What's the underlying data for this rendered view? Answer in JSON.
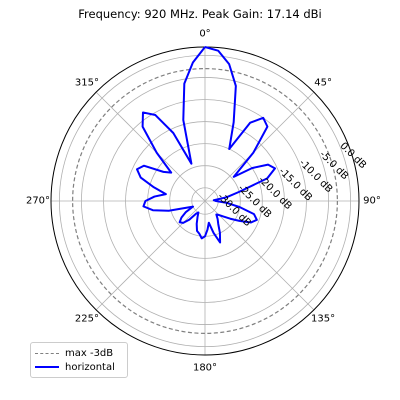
{
  "chart_data": {
    "type": "polar-line",
    "title": "Frequency: 920 MHz. Peak Gain: 17.14 dBi",
    "angle_tick_labels": [
      "0°",
      "45°",
      "90°",
      "135°",
      "180°",
      "225°",
      "270°",
      "315°"
    ],
    "angle_ticks_deg": [
      0,
      45,
      90,
      135,
      180,
      225,
      270,
      315
    ],
    "radial_tick_labels": [
      "-30.0 dB",
      "-25.0 dB",
      "-20.0 dB",
      "-15.0 dB",
      "-10.0 dB",
      "-5.0 dB",
      "0.0 dB"
    ],
    "radial_ticks_db": [
      -30,
      -25,
      -20,
      -15,
      -10,
      -5,
      0
    ],
    "rlim_db": [
      -33,
      1.9
    ],
    "theta_zero": "top",
    "theta_direction": "clockwise",
    "grid": true,
    "legend_placement": "lower-left",
    "reference_line": {
      "name": "max -3dB",
      "value_db": -3,
      "color": "#808080",
      "style": "dashed"
    },
    "series": [
      {
        "name": "horizontal",
        "color": "#0000ff",
        "angles_deg": [
          0,
          5,
          10,
          15,
          20,
          25,
          30,
          35,
          40,
          45,
          50,
          55,
          60,
          65,
          70,
          75,
          80,
          85,
          90,
          95,
          100,
          105,
          110,
          115,
          120,
          125,
          130,
          135,
          140,
          145,
          150,
          155,
          160,
          165,
          170,
          175,
          180,
          185,
          190,
          195,
          200,
          205,
          210,
          215,
          220,
          225,
          230,
          235,
          240,
          245,
          250,
          255,
          260,
          265,
          270,
          275,
          280,
          285,
          290,
          295,
          300,
          305,
          310,
          315,
          320,
          325,
          330,
          335,
          340,
          345,
          350,
          355
        ],
        "values_db": [
          1.9,
          1.2,
          -1.5,
          -6.0,
          -14.0,
          -20.0,
          -12.5,
          -10.0,
          -11.0,
          -17.5,
          -24.5,
          -20.0,
          -16.5,
          -15.5,
          -18.0,
          -25.0,
          -28.0,
          -31.0,
          -30.5,
          -28.0,
          -25.0,
          -21.5,
          -20.5,
          -21.5,
          -24.0,
          -26.0,
          -27.5,
          -28.5,
          -29.0,
          -28.0,
          -27.0,
          -25.0,
          -23.0,
          -25.5,
          -28.0,
          -26.5,
          -25.0,
          -24.5,
          -25.5,
          -26.0,
          -27.5,
          -29.0,
          -30.0,
          -29.5,
          -27.5,
          -26.0,
          -25.5,
          -26.5,
          -28.0,
          -30.0,
          -28.5,
          -24.5,
          -21.0,
          -19.0,
          -19.5,
          -21.5,
          -24.0,
          -21.0,
          -17.5,
          -16.0,
          -17.0,
          -21.5,
          -23.0,
          -17.5,
          -11.0,
          -8.5,
          -10.5,
          -16.0,
          -24.0,
          -14.0,
          -6.0,
          -1.5
        ]
      }
    ]
  },
  "legend": {
    "items": [
      {
        "label": "max -3dB",
        "color": "#808080",
        "style": "dashed"
      },
      {
        "label": "horizontal",
        "color": "#0000ff",
        "style": "solid"
      }
    ]
  }
}
